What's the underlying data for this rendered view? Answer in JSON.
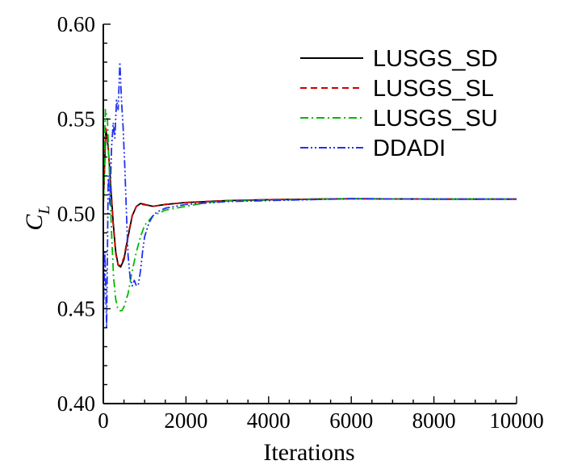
{
  "chart_data": {
    "type": "line",
    "xlabel": "Iterations",
    "ylabel_main": "C",
    "ylabel_sub": "L",
    "xlim": [
      0,
      10000
    ],
    "ylim": [
      0.4,
      0.6
    ],
    "x_ticks": [
      0,
      2000,
      4000,
      6000,
      8000,
      10000
    ],
    "x_tick_labels": [
      "0",
      "2000",
      "4000",
      "6000",
      "8000",
      "10000"
    ],
    "y_ticks": [
      0.4,
      0.45,
      0.5,
      0.55,
      0.6
    ],
    "y_tick_labels": [
      "0.40",
      "0.45",
      "0.50",
      "0.55",
      "0.60"
    ],
    "grid": false,
    "legend_position": "top-right",
    "series": [
      {
        "name": "LUSGS_SD",
        "color": "#000000",
        "dash": "solid",
        "x": [
          0,
          60,
          120,
          180,
          240,
          300,
          360,
          420,
          500,
          600,
          700,
          800,
          900,
          1000,
          1200,
          1500,
          2000,
          3000,
          4000,
          6000,
          8000,
          10000
        ],
        "y": [
          0.505,
          0.545,
          0.535,
          0.515,
          0.495,
          0.48,
          0.473,
          0.472,
          0.476,
          0.488,
          0.499,
          0.504,
          0.5055,
          0.505,
          0.504,
          0.505,
          0.506,
          0.507,
          0.5075,
          0.508,
          0.5078,
          0.5078
        ]
      },
      {
        "name": "LUSGS_SL",
        "color": "#cc0000",
        "dash": "dashed",
        "x": [
          0,
          60,
          120,
          180,
          240,
          300,
          360,
          420,
          500,
          600,
          700,
          800,
          900,
          1000,
          1200,
          1500,
          2000,
          3000,
          4000,
          6000,
          8000,
          10000
        ],
        "y": [
          0.505,
          0.545,
          0.535,
          0.514,
          0.494,
          0.479,
          0.473,
          0.473,
          0.477,
          0.489,
          0.499,
          0.504,
          0.505,
          0.5048,
          0.504,
          0.505,
          0.506,
          0.507,
          0.5075,
          0.508,
          0.5078,
          0.5078
        ]
      },
      {
        "name": "LUSGS_SU",
        "color": "#00bb00",
        "dash": "dashdot",
        "x": [
          0,
          50,
          100,
          150,
          200,
          250,
          300,
          350,
          400,
          450,
          500,
          600,
          700,
          800,
          900,
          1000,
          1200,
          1500,
          2000,
          2500,
          3000,
          4000,
          6000,
          8000,
          10000
        ],
        "y": [
          0.5,
          0.555,
          0.55,
          0.52,
          0.49,
          0.466,
          0.455,
          0.45,
          0.449,
          0.449,
          0.451,
          0.458,
          0.47,
          0.48,
          0.488,
          0.494,
          0.499,
          0.502,
          0.504,
          0.506,
          0.5068,
          0.5072,
          0.508,
          0.5078,
          0.5078
        ]
      },
      {
        "name": "DDADI",
        "color": "#2233ee",
        "dash": "dashdotdot",
        "x": [
          0,
          40,
          80,
          120,
          160,
          200,
          240,
          280,
          320,
          360,
          400,
          440,
          480,
          520,
          560,
          600,
          650,
          700,
          750,
          800,
          850,
          900,
          950,
          1000,
          1100,
          1200,
          1300,
          1500,
          2000,
          3000,
          4000,
          6000,
          8000,
          10000
        ],
        "y": [
          0.445,
          0.48,
          0.44,
          0.52,
          0.505,
          0.535,
          0.548,
          0.54,
          0.56,
          0.555,
          0.58,
          0.56,
          0.545,
          0.525,
          0.5,
          0.478,
          0.466,
          0.462,
          0.465,
          0.462,
          0.463,
          0.47,
          0.48,
          0.488,
          0.495,
          0.499,
          0.501,
          0.503,
          0.505,
          0.5065,
          0.507,
          0.508,
          0.5078,
          0.5078
        ]
      }
    ]
  }
}
